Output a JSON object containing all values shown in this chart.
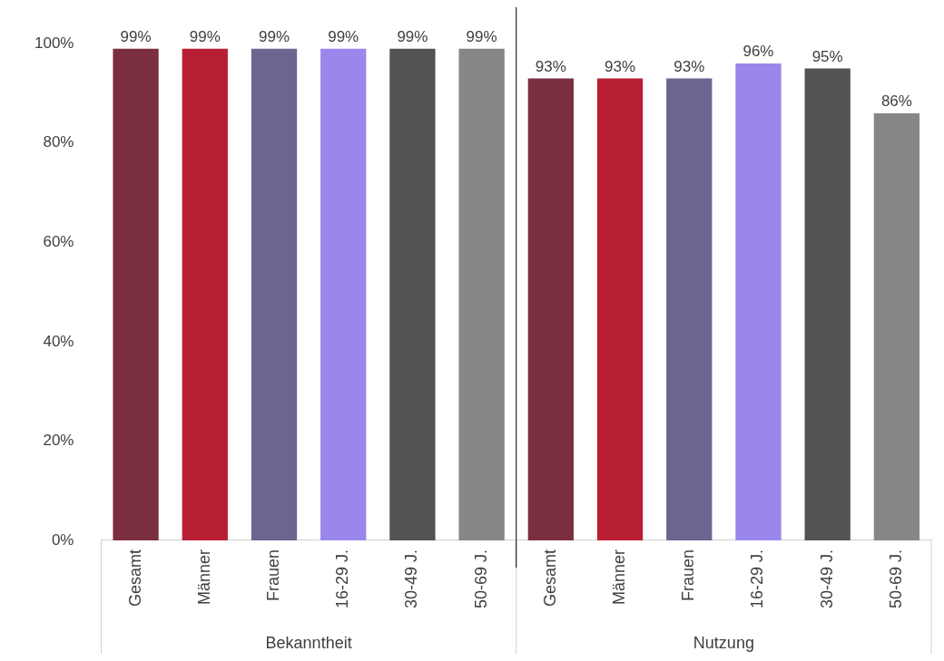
{
  "chart_data": {
    "type": "bar",
    "categories": [
      "Gesamt",
      "Männer",
      "Frauen",
      "16-29 J.",
      "30-49 J.",
      "50-69 J.",
      "Gesamt",
      "Männer",
      "Frauen",
      "16-29 J.",
      "30-49 J.",
      "50-69 J."
    ],
    "values": [
      99,
      99,
      99,
      99,
      99,
      99,
      93,
      93,
      93,
      96,
      95,
      86
    ],
    "colors": [
      "#7b2f3e",
      "#b81f35",
      "#6b6590",
      "#9b87ec",
      "#535353",
      "#878787",
      "#7b2f3e",
      "#b81f35",
      "#6b6590",
      "#9b87ec",
      "#535353",
      "#878787"
    ],
    "value_labels": [
      "99%",
      "99%",
      "99%",
      "99%",
      "99%",
      "99%",
      "93%",
      "93%",
      "93%",
      "96%",
      "95%",
      "86%"
    ],
    "ylim": [
      0,
      100
    ],
    "yticks": [
      {
        "value": 0,
        "label": "0%"
      },
      {
        "value": 20,
        "label": "20%"
      },
      {
        "value": 40,
        "label": "40%"
      },
      {
        "value": 60,
        "label": "60%"
      },
      {
        "value": 80,
        "label": "80%"
      },
      {
        "value": 100,
        "label": "100%"
      }
    ],
    "annotations": [
      "Bekanntheit",
      "Nutzung"
    ],
    "grid": false,
    "legend": false
  }
}
